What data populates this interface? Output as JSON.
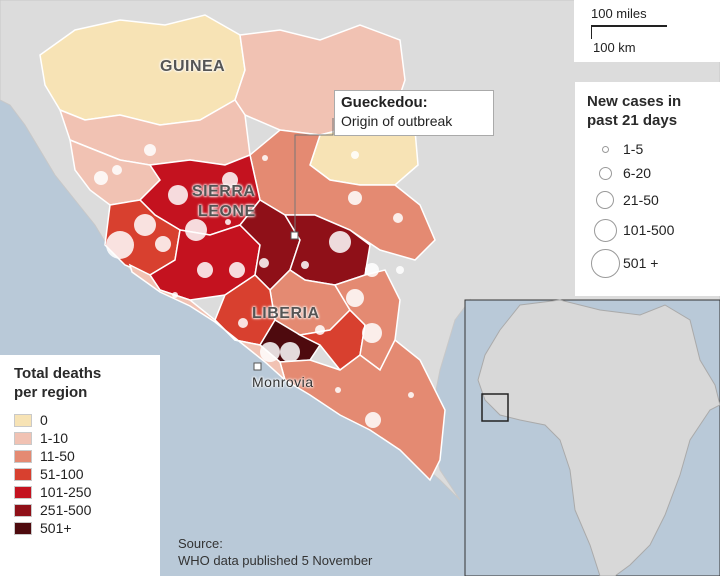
{
  "scale": {
    "miles": "100 miles",
    "km": "100 km"
  },
  "labels": {
    "guinea": "GUINEA",
    "sierra_leone_1": "SIERRA",
    "sierra_leone_2": "LEONE",
    "liberia": "LIBERIA",
    "monrovia": "Monrovia"
  },
  "callout": {
    "title": "Gueckedou:",
    "subtitle": "Origin of outbreak"
  },
  "cases_legend": {
    "title_line1": "New cases in",
    "title_line2": "past 21 days",
    "items": [
      "1-5",
      "6-20",
      "21-50",
      "101-500",
      "501 +"
    ]
  },
  "deaths_legend": {
    "title_line1": "Total deaths",
    "title_line2": "per region",
    "items": [
      {
        "label": "0",
        "color": "#f7e3b5"
      },
      {
        "label": "1-10",
        "color": "#f1c2b3"
      },
      {
        "label": "11-50",
        "color": "#e48a72"
      },
      {
        "label": "51-100",
        "color": "#d8402f"
      },
      {
        "label": "101-250",
        "color": "#c4121f"
      },
      {
        "label": "251-500",
        "color": "#8f1018"
      },
      {
        "label": "501+",
        "color": "#4e0a0e"
      }
    ]
  },
  "source": {
    "line1": "Source:",
    "line2": "WHO data published 5 November"
  },
  "colors": {
    "sea": "#b9c9d8",
    "land": "#e0e0e0",
    "border": "#ffffff"
  }
}
